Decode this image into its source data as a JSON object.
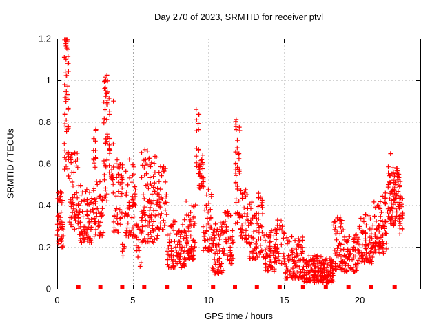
{
  "chart_data": {
    "type": "scatter",
    "title": "Day 270 of 2023, SRMTID for receiver ptvl",
    "xlabel": "GPS time / hours",
    "ylabel": "SRMTID / TECUs",
    "xlim": [
      0,
      24
    ],
    "ylim": [
      0,
      1.2
    ],
    "x_ticks": [
      0,
      5,
      10,
      15,
      20
    ],
    "x_tick_labels": [
      "0",
      "5",
      "10",
      "15",
      "20"
    ],
    "y_ticks": [
      0,
      0.2,
      0.4,
      0.6,
      0.8,
      1,
      1.2
    ],
    "y_tick_labels": [
      "0",
      "0.2",
      "0.4",
      "0.6",
      "0.8",
      "1",
      "1.2"
    ],
    "grid": true,
    "legend": "none",
    "colors": {
      "points": "#ff0000",
      "grid": "#a8a8a8",
      "axis": "#000000",
      "background": "#ffffff"
    },
    "series": [
      {
        "name": "srmtid",
        "marker": "plus",
        "color": "#ff0000",
        "clusters_format": [
          "x_start_h",
          "x_end_h",
          "y_min_tecu",
          "y_max_tecu",
          "n_points",
          "skew_low_gt1_high_lt1",
          "columns_optional"
        ],
        "clusters": [
          [
            0.0,
            0.45,
            0.2,
            0.47,
            50,
            1.2
          ],
          [
            0.45,
            0.78,
            0.45,
            1.23,
            52,
            0.65,
            3
          ],
          [
            0.8,
            1.45,
            0.28,
            0.66,
            55,
            1.4
          ],
          [
            1.45,
            2.35,
            0.22,
            0.5,
            70,
            1.5
          ],
          [
            2.35,
            2.6,
            0.58,
            0.8,
            14,
            1.0,
            2
          ],
          [
            2.4,
            3.05,
            0.25,
            0.56,
            50,
            1.5
          ],
          [
            3.05,
            3.35,
            0.4,
            1.03,
            42,
            1.0,
            3
          ],
          [
            3.4,
            3.75,
            0.5,
            0.95,
            22,
            1.2,
            3
          ],
          [
            3.7,
            4.35,
            0.27,
            0.62,
            48,
            1.5
          ],
          [
            4.3,
            4.45,
            0.13,
            0.22,
            6,
            1.0
          ],
          [
            4.45,
            5.2,
            0.25,
            0.63,
            58,
            1.5
          ],
          [
            5.2,
            5.55,
            0.1,
            0.32,
            15,
            1.2
          ],
          [
            5.55,
            6.65,
            0.22,
            0.67,
            100,
            1.6
          ],
          [
            6.65,
            7.25,
            0.28,
            0.6,
            40,
            1.4
          ],
          [
            7.25,
            8.45,
            0.1,
            0.36,
            90,
            1.5
          ],
          [
            8.45,
            9.15,
            0.14,
            0.42,
            60,
            1.5
          ],
          [
            9.15,
            9.4,
            0.55,
            0.88,
            18,
            1.0,
            2
          ],
          [
            9.35,
            9.7,
            0.48,
            0.66,
            28,
            1.2,
            3
          ],
          [
            9.6,
            10.25,
            0.18,
            0.5,
            42,
            1.6
          ],
          [
            10.25,
            11.05,
            0.07,
            0.32,
            65,
            1.6
          ],
          [
            11.05,
            11.65,
            0.12,
            0.38,
            45,
            1.5
          ],
          [
            11.75,
            12.1,
            0.3,
            0.82,
            40,
            0.9,
            3
          ],
          [
            12.1,
            12.65,
            0.22,
            0.48,
            38,
            1.5
          ],
          [
            12.65,
            13.25,
            0.14,
            0.42,
            45,
            1.7
          ],
          [
            13.25,
            13.6,
            0.15,
            0.46,
            30,
            1.0,
            3
          ],
          [
            13.6,
            14.4,
            0.08,
            0.28,
            60,
            1.5
          ],
          [
            14.4,
            15.0,
            0.12,
            0.33,
            38,
            1.3
          ],
          [
            15.0,
            16.25,
            0.05,
            0.25,
            100,
            1.6
          ],
          [
            16.25,
            18.25,
            0.03,
            0.16,
            180,
            1.4
          ],
          [
            18.25,
            18.95,
            0.09,
            0.35,
            60,
            1.5
          ],
          [
            18.95,
            19.85,
            0.08,
            0.26,
            60,
            1.5
          ],
          [
            19.85,
            20.85,
            0.12,
            0.36,
            75,
            1.5
          ],
          [
            20.85,
            21.85,
            0.17,
            0.46,
            85,
            1.5
          ],
          [
            21.85,
            22.25,
            0.3,
            0.67,
            38,
            1.1,
            4
          ],
          [
            22.1,
            22.7,
            0.3,
            0.58,
            55,
            1.2
          ],
          [
            22.55,
            22.9,
            0.26,
            0.44,
            22,
            1.2,
            2
          ]
        ]
      },
      {
        "name": "zero-flags",
        "marker": "filled-square",
        "color": "#ff0000",
        "y_value": 0,
        "hours": [
          1.4,
          2.85,
          4.3,
          5.75,
          7.25,
          8.75,
          10.3,
          11.75,
          13.2,
          14.7,
          16.25,
          17.75,
          19.25,
          20.75,
          22.3
        ]
      }
    ]
  }
}
